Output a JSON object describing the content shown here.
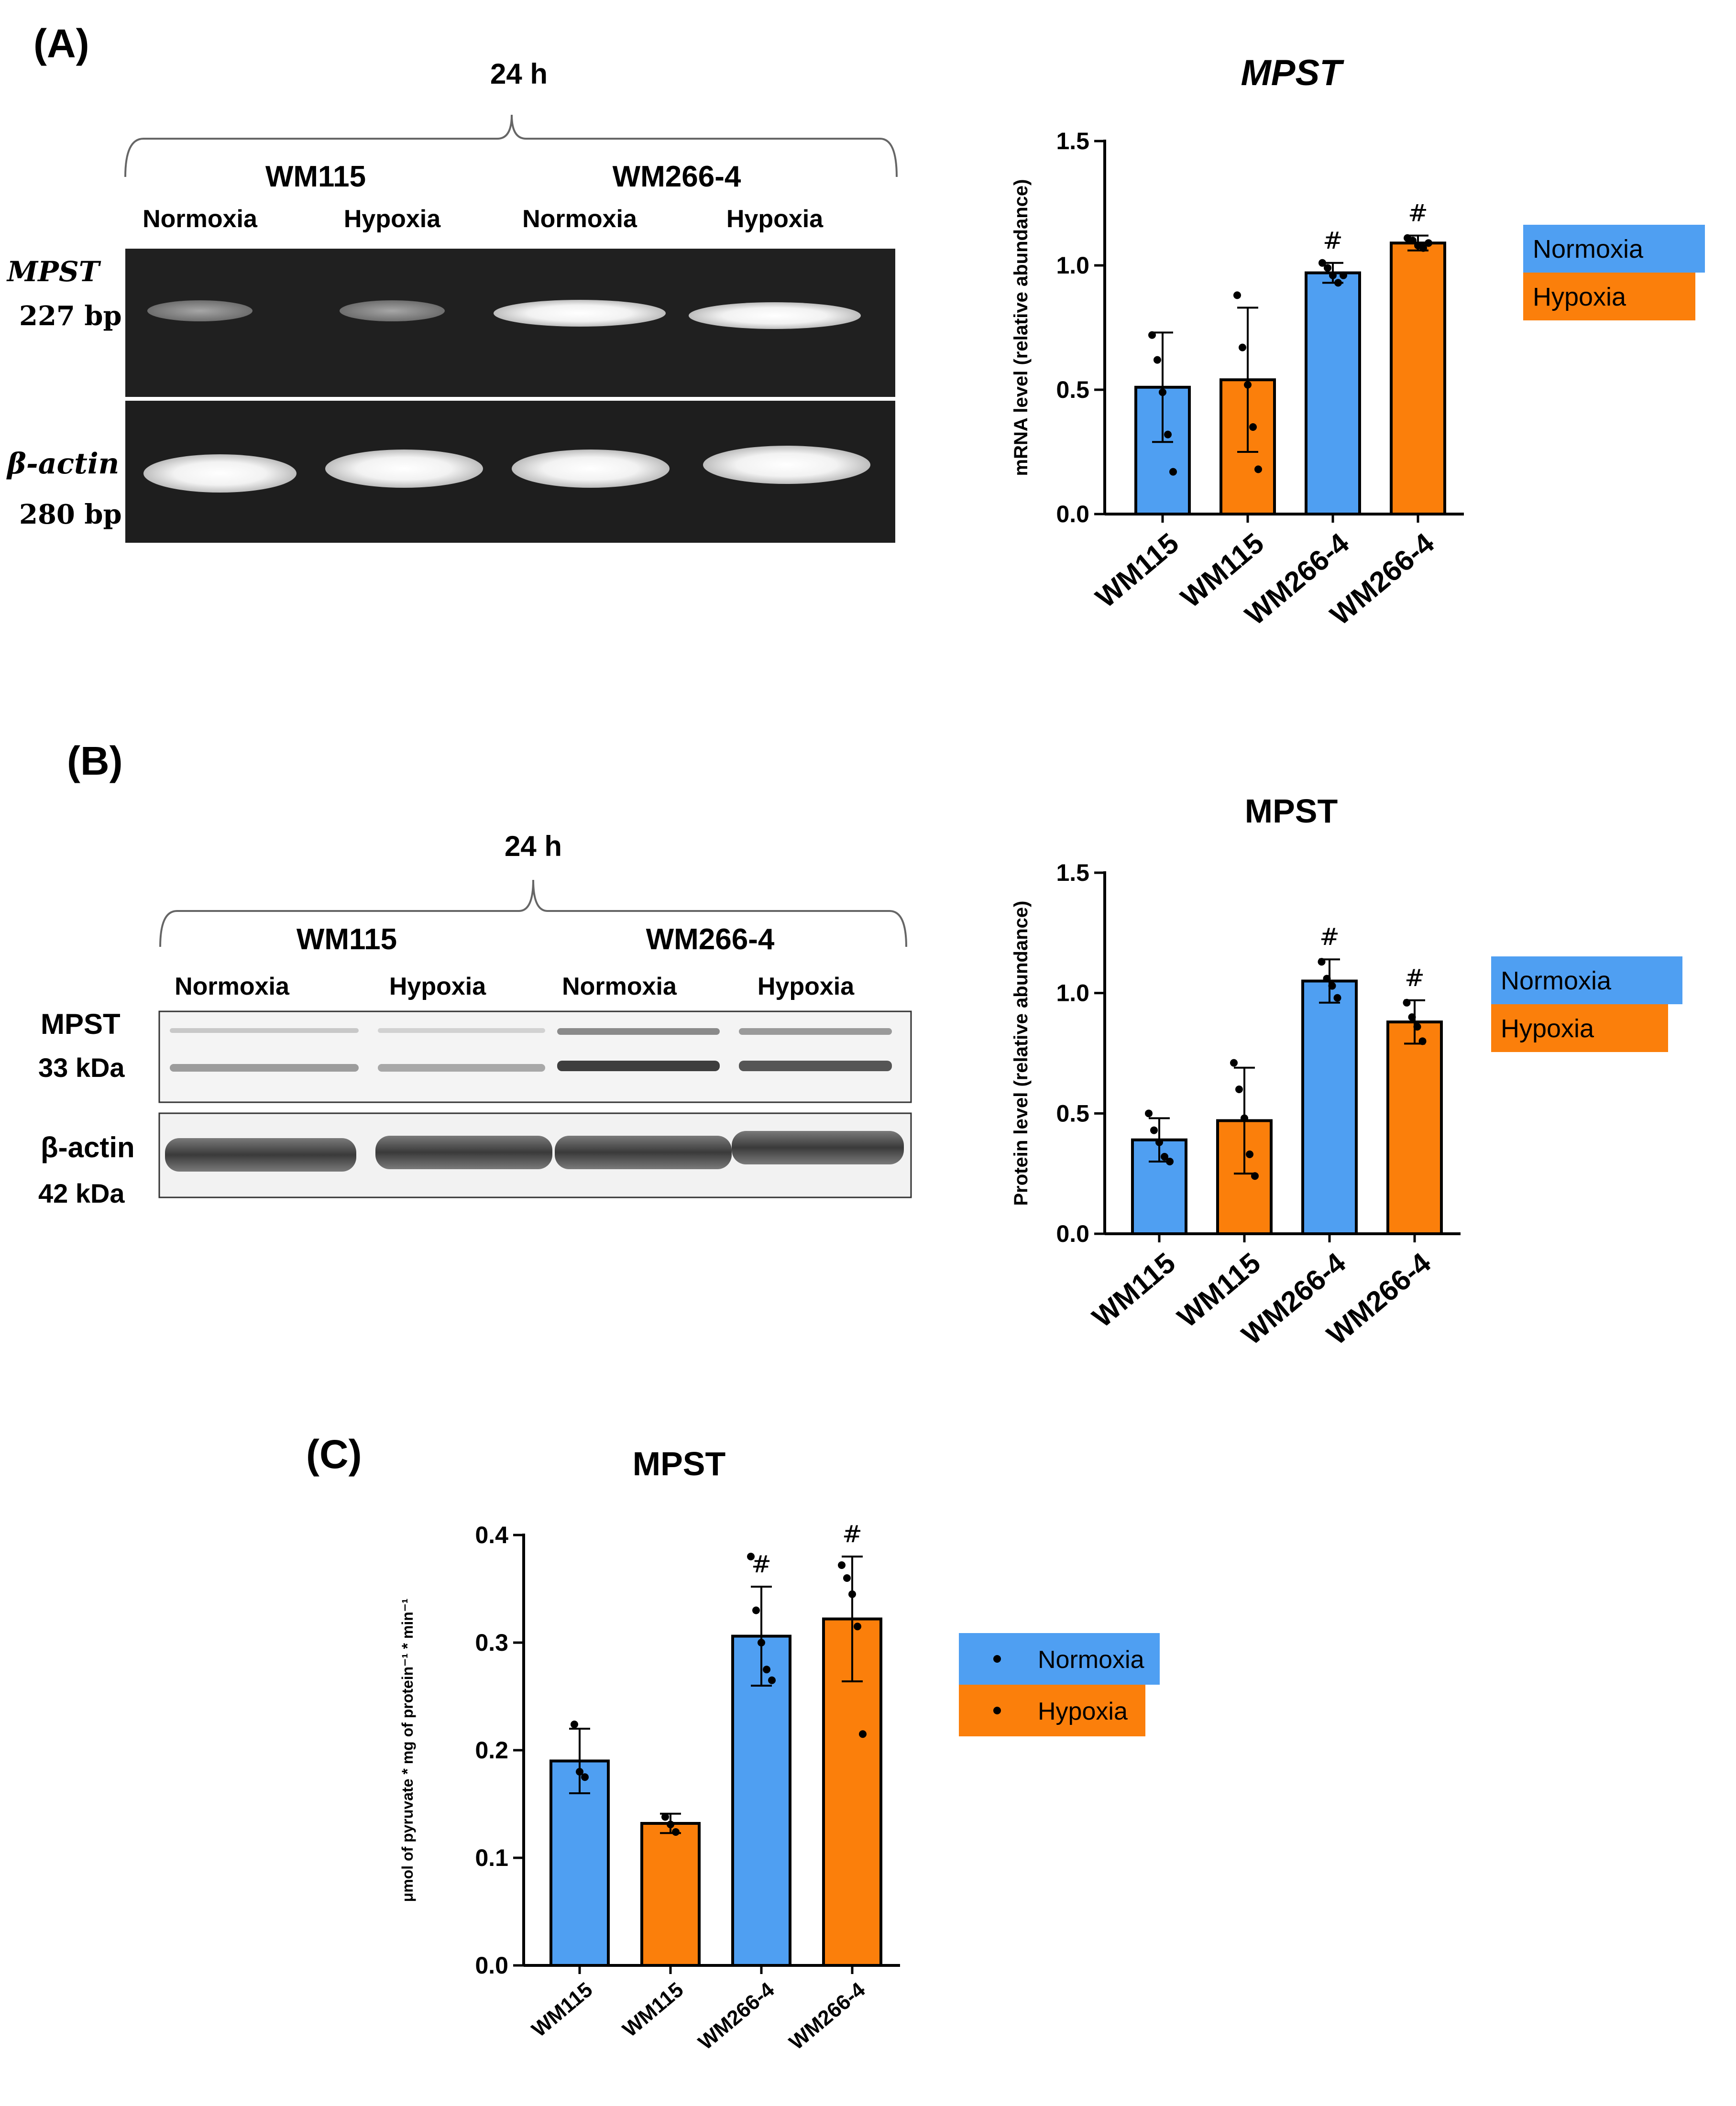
{
  "colors": {
    "normoxia": "#4f9ff2",
    "hypoxia": "#fb7f0b",
    "gel_bg": "#202020",
    "blot_bg": "#f4f4f4"
  },
  "panel_a": {
    "label": "(A)",
    "time_label": "24 h",
    "cell_lines": [
      "WM115",
      "WM266-4"
    ],
    "conditions": [
      "Normoxia",
      "Hypoxia",
      "Normoxia",
      "Hypoxia"
    ],
    "gene_label": "MPST",
    "gene_size": "227 bp",
    "control_label": "β-actin",
    "control_size": "280 bp"
  },
  "panel_b": {
    "label": "(B)",
    "time_label": "24 h",
    "cell_lines": [
      "WM115",
      "WM266-4"
    ],
    "conditions": [
      "Normoxia",
      "Hypoxia",
      "Normoxia",
      "Hypoxia"
    ],
    "protein_label": "MPST",
    "protein_size": "33 kDa",
    "control_label": "β-actin",
    "control_size": "42 kDa"
  },
  "panel_c": {
    "label": "(C)"
  },
  "legend": {
    "normoxia": "Normoxia",
    "hypoxia": "Hypoxia"
  },
  "chart_data": [
    {
      "type": "bar",
      "title": "MPST",
      "ylabel": "mRNA level (relative abundance)",
      "categories": [
        "WM115",
        "WM115",
        "WM266-4",
        "WM266-4"
      ],
      "condition": [
        "Normoxia",
        "Hypoxia",
        "Normoxia",
        "Hypoxia"
      ],
      "values": [
        0.51,
        0.54,
        0.97,
        1.09
      ],
      "error": [
        0.22,
        0.29,
        0.04,
        0.03
      ],
      "points": [
        [
          0.72,
          0.62,
          0.49,
          0.32,
          0.17
        ],
        [
          0.88,
          0.67,
          0.52,
          0.35,
          0.18
        ],
        [
          1.01,
          0.99,
          0.96,
          0.93,
          0.96
        ],
        [
          1.11,
          1.1,
          1.08,
          1.07,
          1.09
        ]
      ],
      "annotations": [
        "",
        "",
        "#",
        "#"
      ],
      "ylim": [
        0,
        1.5
      ],
      "yticks": [
        "0.0",
        "0.5",
        "1.0",
        "1.5"
      ],
      "legend": [
        "Normoxia",
        "Hypoxia"
      ]
    },
    {
      "type": "bar",
      "title": "MPST",
      "ylabel": "Protein level (relative abundance)",
      "categories": [
        "WM115",
        "WM115",
        "WM266-4",
        "WM266-4"
      ],
      "condition": [
        "Normoxia",
        "Hypoxia",
        "Normoxia",
        "Hypoxia"
      ],
      "values": [
        0.39,
        0.47,
        1.05,
        0.88
      ],
      "error": [
        0.09,
        0.22,
        0.09,
        0.09
      ],
      "points": [
        [
          0.5,
          0.43,
          0.38,
          0.32,
          0.3
        ],
        [
          0.71,
          0.6,
          0.48,
          0.33,
          0.24
        ],
        [
          1.13,
          1.06,
          1.03,
          0.98
        ],
        [
          0.96,
          0.9,
          0.86,
          0.8
        ]
      ],
      "annotations": [
        "",
        "",
        "#",
        "#"
      ],
      "ylim": [
        0,
        1.5
      ],
      "yticks": [
        "0.0",
        "0.5",
        "1.0",
        "1.5"
      ],
      "legend": [
        "Normoxia",
        "Hypoxia"
      ]
    },
    {
      "type": "bar",
      "title": "MPST",
      "ylabel": "μmol of pyruvate * mg of protein⁻¹ * min⁻¹",
      "categories": [
        "WM115",
        "WM115",
        "WM266-4",
        "WM266-4"
      ],
      "condition": [
        "Normoxia",
        "Hypoxia",
        "Normoxia",
        "Hypoxia"
      ],
      "values": [
        0.19,
        0.132,
        0.306,
        0.322
      ],
      "error": [
        0.03,
        0.009,
        0.046,
        0.058
      ],
      "points": [
        [
          0.224,
          0.18,
          0.175
        ],
        [
          0.138,
          0.131,
          0.124
        ],
        [
          0.38,
          0.33,
          0.3,
          0.275,
          0.265
        ],
        [
          0.372,
          0.36,
          0.345,
          0.315,
          0.215
        ]
      ],
      "annotations": [
        "",
        "",
        "#",
        "#"
      ],
      "ylim": [
        0,
        0.4
      ],
      "yticks": [
        "0.0",
        "0.1",
        "0.2",
        "0.3",
        "0.4"
      ],
      "legend": [
        "Normoxia",
        "Hypoxia"
      ]
    }
  ]
}
